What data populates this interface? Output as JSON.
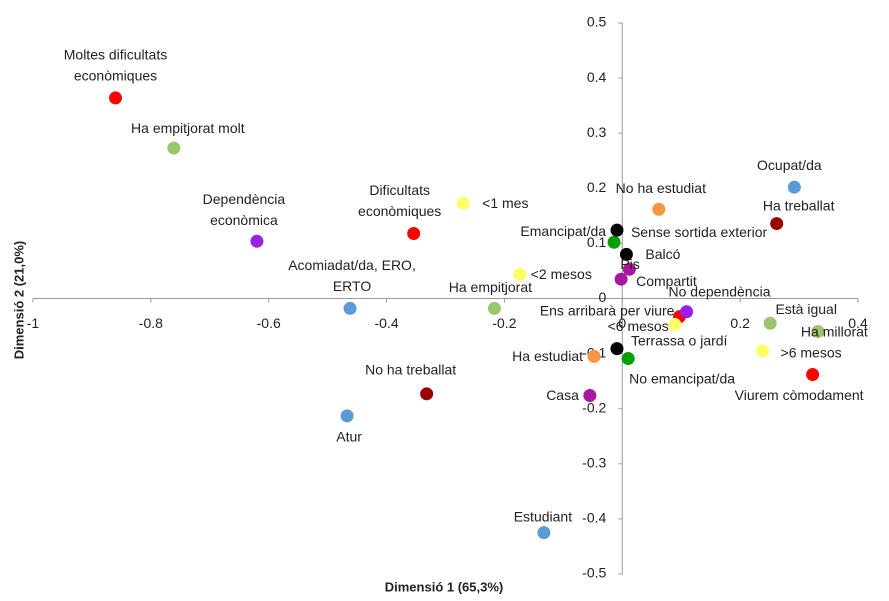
{
  "chart_data": {
    "type": "scatter",
    "x_label": "Dimensió 1 (65,3%)",
    "y_label": "Dimensió 2 (21,0%)",
    "xlim": [
      -1,
      0.4
    ],
    "ylim": [
      -0.5,
      0.5
    ],
    "xticks": [
      -1,
      -0.8,
      -0.6,
      -0.4,
      -0.2,
      0,
      0.2,
      0.4
    ],
    "yticks": [
      -0.5,
      -0.4,
      -0.3,
      -0.2,
      -0.1,
      0,
      0.1,
      0.2,
      0.3,
      0.4,
      0.5
    ],
    "labels": [
      [
        "Moltes dificultats",
        "econòmiques"
      ],
      [
        "Ha empitjorat molt"
      ],
      [
        "Dependència",
        "econòmica"
      ],
      [
        "Acomiadat/da, ERO,",
        "ERTO"
      ],
      [
        "Dificultats",
        "econòmiques"
      ],
      [
        "<1 mes"
      ],
      [
        "No ha treballat"
      ],
      [
        "Atur"
      ],
      [
        "<2 mesos"
      ],
      [
        "Ha empitjorat"
      ],
      [
        "Estudiant"
      ],
      [
        "Casa"
      ],
      [
        "Ha estudiat"
      ],
      [
        "Emancipat/da"
      ],
      [
        "Sense sortida exterior"
      ],
      [
        "Balcó"
      ],
      [
        "Pis"
      ],
      [
        "Compartit"
      ],
      [
        "No ha estudiat"
      ],
      [
        "Ens arribarà per viure"
      ],
      [
        "<6 mesos"
      ],
      [
        "No dependència"
      ],
      [
        "Terrassa o jardí"
      ],
      [
        "No emancipat/da"
      ],
      [
        "Ocupat/da"
      ],
      [
        "Ha treballat"
      ],
      [
        "Està igual"
      ],
      [
        "Ha millorat"
      ],
      [
        ">6 mesos"
      ],
      [
        "Viurem còmodament"
      ]
    ],
    "x": [
      -0.86,
      -0.761,
      -0.62,
      -0.462,
      -0.354,
      -0.27,
      -0.332,
      -0.467,
      -0.174,
      -0.217,
      -0.133,
      -0.055,
      -0.048,
      -0.014,
      -0.009,
      0.007,
      0.012,
      -0.002,
      0.062,
      0.097,
      0.089,
      0.109,
      -0.009,
      0.01,
      0.292,
      0.262,
      0.251,
      0.332,
      0.238,
      0.323
    ],
    "values": [
      0.364,
      0.273,
      0.104,
      -0.018,
      0.118,
      0.173,
      -0.173,
      -0.213,
      0.044,
      -0.018,
      -0.425,
      -0.176,
      -0.105,
      0.102,
      0.124,
      0.08,
      0.053,
      0.035,
      0.162,
      -0.033,
      -0.047,
      -0.024,
      -0.091,
      -0.109,
      0.202,
      0.136,
      -0.045,
      -0.06,
      -0.095,
      -0.138
    ],
    "colors": [
      "#ff0000",
      "#9bc66b",
      "#9b1fe8",
      "#5b9bd5",
      "#ff0000",
      "#ffff66",
      "#990000",
      "#5b9bd5",
      "#ffff66",
      "#9bc66b",
      "#5b9bd5",
      "#a8179e",
      "#f79646",
      "#00a000",
      "#000000",
      "#000000",
      "#a8179e",
      "#a8179e",
      "#f79646",
      "#ff0000",
      "#ffff66",
      "#9b1fe8",
      "#000000",
      "#00a000",
      "#5b9bd5",
      "#990000",
      "#9bc66b",
      "#9bc66b",
      "#ffff66",
      "#ff0000"
    ]
  }
}
